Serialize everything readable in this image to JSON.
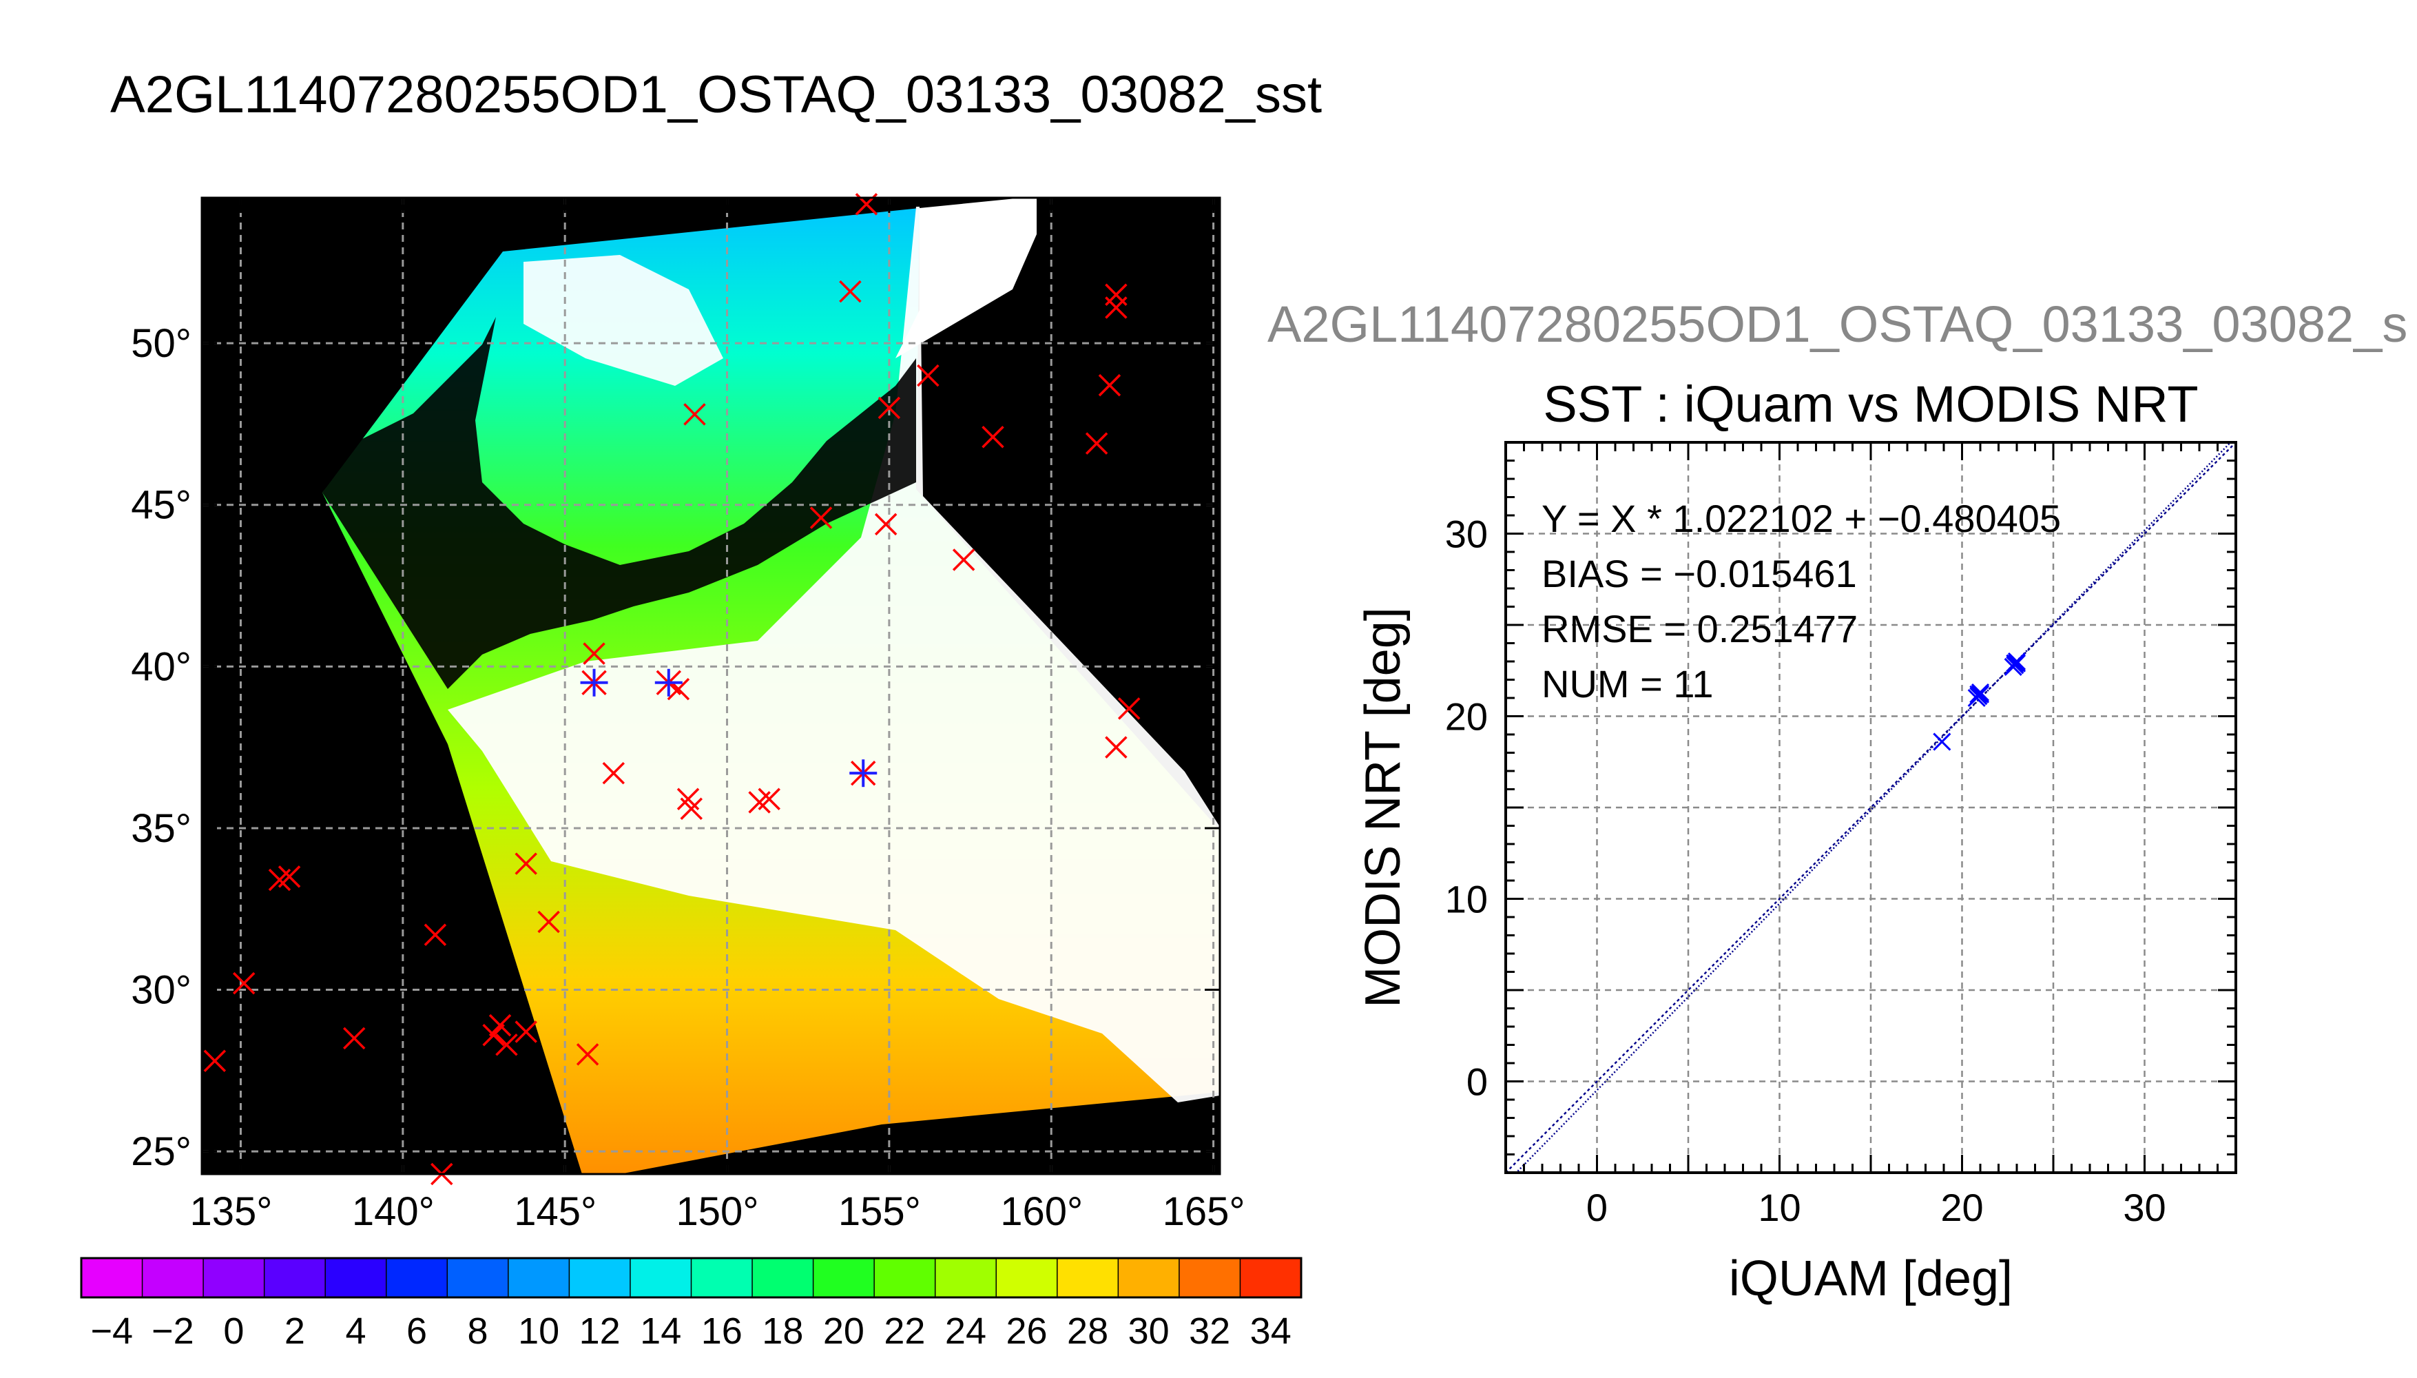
{
  "figure_title": "A2GL11407280255OD1_OSTAQ_03133_03082_sst",
  "figure_title_truncated": "A2GL11407280255OD1_OSTAQ_03133_03082_s",
  "map": {
    "lon_ticks": [
      "135°",
      "140°",
      "145°",
      "150°",
      "155°",
      "160°",
      "165°"
    ],
    "lon_values": [
      135,
      140,
      145,
      150,
      155,
      160,
      165
    ],
    "lat_ticks": [
      "50°",
      "45°",
      "40°",
      "35°",
      "30°",
      "25°"
    ],
    "lat_values": [
      50,
      45,
      40,
      35,
      30,
      25
    ],
    "lon_range": [
      133.8,
      165.2
    ],
    "lat_range": [
      24.3,
      54.5
    ],
    "iquam_points_lonlat": [
      [
        134.2,
        27.8
      ],
      [
        135.1,
        30.2
      ],
      [
        136.2,
        33.4
      ],
      [
        136.5,
        33.5
      ],
      [
        138.5,
        28.5
      ],
      [
        141.0,
        31.7
      ],
      [
        141.2,
        24.3
      ],
      [
        142.8,
        28.6
      ],
      [
        143.0,
        28.9
      ],
      [
        143.2,
        28.3
      ],
      [
        143.8,
        28.7
      ],
      [
        143.8,
        33.9
      ],
      [
        144.5,
        32.1
      ],
      [
        145.7,
        28.0
      ],
      [
        145.9,
        40.4
      ],
      [
        146.5,
        36.7
      ],
      [
        148.5,
        39.3
      ],
      [
        148.8,
        35.9
      ],
      [
        148.9,
        35.6
      ],
      [
        149.0,
        47.8
      ],
      [
        151.0,
        35.8
      ],
      [
        151.3,
        35.9
      ],
      [
        152.9,
        44.6
      ],
      [
        153.8,
        51.6
      ],
      [
        154.3,
        54.3
      ],
      [
        154.9,
        44.4
      ],
      [
        155.0,
        48.0
      ],
      [
        156.2,
        49.0
      ],
      [
        157.3,
        43.3
      ],
      [
        158.2,
        47.1
      ],
      [
        161.4,
        46.9
      ],
      [
        161.8,
        48.7
      ],
      [
        162.0,
        51.5
      ],
      [
        162.0,
        51.1
      ],
      [
        162.0,
        37.5
      ],
      [
        162.4,
        38.7
      ]
    ],
    "matchup_points_lonlat": [
      [
        145.9,
        39.5
      ],
      [
        148.2,
        39.5
      ],
      [
        154.2,
        36.7
      ]
    ]
  },
  "colorbar": {
    "tick_labels": [
      "−4",
      "−2",
      "0",
      "2",
      "4",
      "6",
      "8",
      "10",
      "12",
      "14",
      "16",
      "18",
      "20",
      "22",
      "24",
      "26",
      "28",
      "30",
      "32",
      "34"
    ],
    "range": [
      -5,
      35
    ],
    "colors": [
      "#e600ff",
      "#c400ff",
      "#9000ff",
      "#5a00ff",
      "#2a00ff",
      "#0028ff",
      "#0060ff",
      "#0098ff",
      "#00c8ff",
      "#00f0e8",
      "#00ffb0",
      "#00ff70",
      "#20ff20",
      "#60ff00",
      "#a0ff00",
      "#d0ff00",
      "#ffe000",
      "#ffb000",
      "#ff7000",
      "#ff3000"
    ]
  },
  "chart_data": {
    "type": "scatter",
    "title": "SST : iQuam vs MODIS NRT",
    "xlabel": "iQUAM [deg]",
    "ylabel": "MODIS NRT [deg]",
    "xlim": [
      -5,
      35
    ],
    "ylim": [
      -5,
      35
    ],
    "x_ticks": [
      0,
      10,
      20,
      30
    ],
    "y_ticks": [
      0,
      10,
      20,
      30
    ],
    "grid": true,
    "annotations": [
      "Y = X * 1.022102 + −0.480405",
      "BIAS = −0.015461",
      "RMSE = 0.251477",
      "NUM = 11"
    ],
    "fit": {
      "slope": 1.022102,
      "intercept": -0.480405
    },
    "x": [
      18.9,
      20.8,
      20.9,
      21.0,
      20.9,
      21.0,
      22.8,
      22.9,
      23.0,
      22.9,
      23.0
    ],
    "y": [
      18.6,
      21.0,
      21.2,
      21.3,
      21.1,
      21.2,
      22.7,
      22.9,
      23.0,
      22.8,
      22.9
    ],
    "marker_color": "#0000ff",
    "line_color": "#00008b"
  }
}
